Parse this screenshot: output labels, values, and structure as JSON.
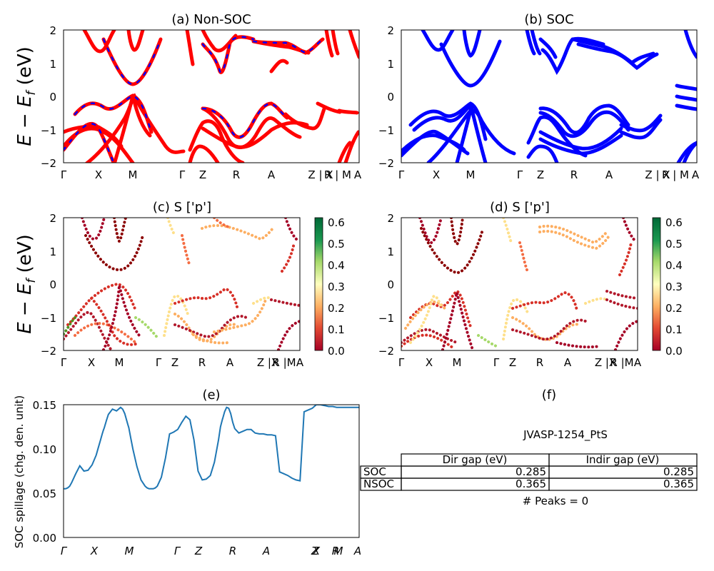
{
  "colors": {
    "nsoc_red": "#ff0000",
    "band_blue": "#0000ff",
    "spill_line": "#1f77b4"
  },
  "chart_data": [
    {
      "id": "a",
      "type": "line",
      "title": "(a) Non-SOC",
      "ylabel_parts": [
        "E",
        " − ",
        "E",
        "f",
        " (eV)"
      ],
      "ylim": [
        -2,
        2
      ],
      "yticks": [
        "2",
        "1",
        "0",
        "−1",
        "−2"
      ],
      "kpath": [
        "Γ",
        "X",
        "M",
        "Γ",
        "Z",
        "R",
        "A",
        "Z | X",
        "R | M",
        "A"
      ],
      "series_style": "red solid with blue dashes"
    },
    {
      "id": "b",
      "type": "line",
      "title": "(b) SOC",
      "ylim": [
        -2,
        2
      ],
      "yticks": [
        "2",
        "1",
        "0",
        "−1",
        "−2"
      ],
      "kpath": [
        "Γ",
        "X",
        "M",
        "Γ",
        "Z",
        "R",
        "A",
        "Z | X",
        "R | M",
        "A"
      ]
    },
    {
      "id": "c",
      "type": "scatter",
      "title": "(c)  S ['p']",
      "ylabel_parts": [
        "E",
        " − ",
        "E",
        "f",
        " (eV)"
      ],
      "ylim": [
        -2,
        2
      ],
      "yticks": [
        "2",
        "1",
        "0",
        "−1",
        "−2"
      ],
      "kpath": [
        "Γ",
        "X",
        "M",
        "Γ",
        "Z",
        "R",
        "A",
        "Z |X",
        "R |M",
        "A"
      ],
      "colorbar": {
        "ticks": [
          "0.6",
          "0.5",
          "0.4",
          "0.3",
          "0.2",
          "0.1",
          "0.0"
        ],
        "range": [
          0,
          0.62
        ],
        "cmap": "RdYlGn"
      }
    },
    {
      "id": "d",
      "type": "scatter",
      "title": "(d) S ['p']",
      "ylim": [
        -2,
        2
      ],
      "yticks": [
        "2",
        "1",
        "0",
        "−1",
        "−2"
      ],
      "kpath": [
        "Γ",
        "X",
        "M",
        "Γ",
        "Z",
        "R",
        "A",
        "Z |X",
        "R |M",
        "A"
      ],
      "colorbar": {
        "ticks": [
          "0.6",
          "0.5",
          "0.4",
          "0.3",
          "0.2",
          "0.1",
          "0.0"
        ],
        "range": [
          0,
          0.62
        ],
        "cmap": "RdYlGn"
      }
    },
    {
      "id": "e",
      "type": "line",
      "title": "(e)",
      "ylabel": "SOC spillage (chg. den. unit)",
      "ylim": [
        0,
        0.15
      ],
      "yticks": [
        "0.15",
        "0.10",
        "0.05",
        "0.00"
      ],
      "kpath": [
        "Γ",
        "X",
        "M",
        "Γ",
        "Z",
        "R",
        "A",
        "Z",
        "X",
        "R",
        "M",
        "A"
      ],
      "x": [
        0,
        1,
        2,
        3,
        4,
        6,
        8,
        10,
        12,
        14,
        16,
        17,
        18,
        19,
        19.5,
        20,
        21,
        22,
        24,
        26,
        28,
        29,
        30,
        31,
        31.5,
        32,
        33,
        34,
        36,
        38,
        40,
        41,
        42,
        43,
        44,
        45,
        46,
        48,
        50,
        52,
        54,
        56,
        58,
        60,
        62,
        64,
        66,
        68,
        68.1,
        70,
        72,
        74,
        76,
        77,
        78,
        78.05,
        79,
        80,
        81,
        82,
        83,
        84,
        86,
        88,
        90,
        91,
        92,
        93,
        94,
        96,
        98,
        100,
        102,
        104,
        106,
        108,
        110,
        112,
        114,
        116,
        118,
        120,
        122,
        124,
        126,
        128,
        128.05,
        130,
        132,
        134,
        136,
        138,
        140,
        142,
        144,
        145
      ],
      "values": [
        0.055,
        0.055,
        0.056,
        0.058,
        0.062,
        0.072,
        0.081,
        0.075,
        0.076,
        0.082,
        0.093,
        0.101,
        0.109,
        0.117,
        0.121,
        0.124,
        0.132,
        0.139,
        0.145,
        0.143,
        0.147,
        0.145,
        0.14,
        0.132,
        0.128,
        0.124,
        0.112,
        0.1,
        0.08,
        0.065,
        0.058,
        0.056,
        0.055,
        0.055,
        0.055,
        0.056,
        0.058,
        0.068,
        0.09,
        0.117,
        0.119,
        0.122,
        0.13,
        0.137,
        0.133,
        0.11,
        0.075,
        0.065,
        0.065,
        0.066,
        0.07,
        0.085,
        0.11,
        0.125,
        0.134,
        0.134,
        0.142,
        0.147,
        0.146,
        0.14,
        0.13,
        0.123,
        0.118,
        0.12,
        0.122,
        0.122,
        0.122,
        0.12,
        0.118,
        0.117,
        0.117,
        0.116,
        0.116,
        0.115,
        0.074,
        0.072,
        0.07,
        0.067,
        0.065,
        0.064,
        0.142,
        0.144,
        0.146,
        0.15,
        0.15,
        0.149,
        0.149,
        0.148,
        0.148,
        0.147,
        0.147,
        0.147,
        0.147,
        0.147,
        0.147,
        0.147
      ]
    }
  ],
  "panel_f": {
    "title": "(f)",
    "material": "JVASP-1254_PtS",
    "table": {
      "columns": [
        "Dir gap (eV)",
        "Indir gap (eV)"
      ],
      "rows": [
        {
          "label": "SOC",
          "values": [
            "0.285",
            "0.285"
          ]
        },
        {
          "label": "NSOC",
          "values": [
            "0.365",
            "0.365"
          ]
        }
      ]
    },
    "peaks": "# Peaks = 0"
  }
}
